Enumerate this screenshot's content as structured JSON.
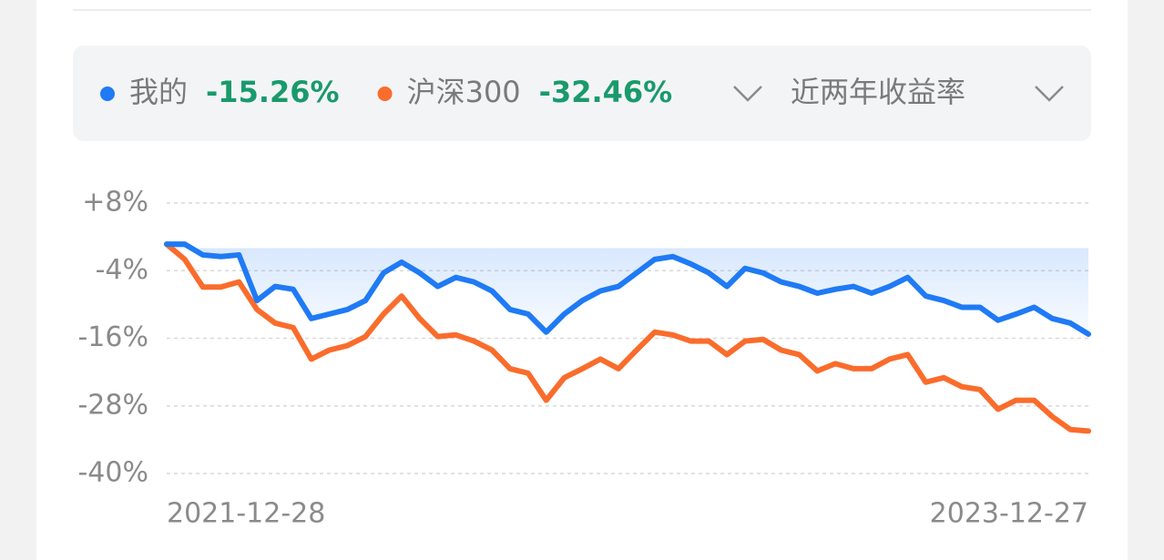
{
  "chart_data": {
    "type": "line",
    "legend_position": "top",
    "period_selector": "近两年收益率",
    "categories": [
      "2021-12-28",
      null,
      null,
      null,
      null,
      null,
      null,
      null,
      null,
      null,
      null,
      null,
      null,
      null,
      null,
      null,
      null,
      null,
      null,
      null,
      null,
      null,
      null,
      null,
      null,
      null,
      null,
      null,
      null,
      null,
      null,
      null,
      null,
      null,
      null,
      null,
      null,
      null,
      null,
      null,
      null,
      null,
      null,
      null,
      null,
      null,
      null,
      null,
      null,
      null,
      null,
      "2023-12-27"
    ],
    "series": [
      {
        "name": "我的",
        "color": "#1f7af5",
        "total_label": "-15.26%",
        "fill": true,
        "values": [
          0.7,
          0.7,
          -1.2,
          -1.5,
          -1.2,
          -9.3,
          -6.8,
          -7.3,
          -12.5,
          -11.7,
          -10.9,
          -9.3,
          -4.4,
          -2.5,
          -4.4,
          -6.8,
          -5.2,
          -6.0,
          -7.6,
          -10.9,
          -11.7,
          -14.9,
          -11.7,
          -9.3,
          -7.6,
          -6.8,
          -4.4,
          -2.0,
          -1.5,
          -2.8,
          -4.4,
          -6.8,
          -3.6,
          -4.4,
          -6.0,
          -6.8,
          -8.0,
          -7.3,
          -6.8,
          -8.0,
          -6.8,
          -5.2,
          -8.5,
          -9.3,
          -10.5,
          -10.5,
          -12.8,
          -11.7,
          -10.5,
          -12.5,
          -13.3,
          -15.26
        ]
      },
      {
        "name": "沪深300",
        "color": "#fa6c2c",
        "total_label": "-32.46%",
        "fill": false,
        "values": [
          0.7,
          -2.0,
          -6.9,
          -6.9,
          -6.0,
          -10.9,
          -13.3,
          -14.1,
          -19.7,
          -18.1,
          -17.3,
          -15.7,
          -11.7,
          -8.5,
          -12.5,
          -15.7,
          -15.4,
          -16.5,
          -18.1,
          -21.4,
          -22.2,
          -27.0,
          -23.0,
          -21.4,
          -19.7,
          -21.4,
          -18.1,
          -14.9,
          -15.4,
          -16.5,
          -16.5,
          -18.9,
          -16.5,
          -16.2,
          -18.1,
          -18.9,
          -21.8,
          -20.5,
          -21.4,
          -21.4,
          -19.7,
          -18.9,
          -23.8,
          -23.0,
          -24.6,
          -25.1,
          -28.6,
          -27.0,
          -27.0,
          -29.9,
          -32.2,
          -32.46
        ]
      }
    ],
    "ylim": [
      -40,
      8
    ],
    "yticks": [
      {
        "value": 8,
        "label": "+8%"
      },
      {
        "value": -4,
        "label": "-4%"
      },
      {
        "value": -16,
        "label": "-16%"
      },
      {
        "value": -28,
        "label": "-28%"
      },
      {
        "value": -40,
        "label": "-40%"
      }
    ],
    "grid": true
  }
}
